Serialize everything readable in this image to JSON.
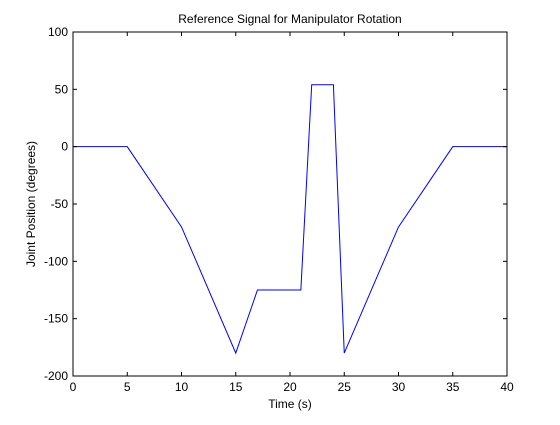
{
  "chart_data": {
    "type": "line",
    "title": "Reference Signal for Manipulator Rotation",
    "xlabel": "Time (s)",
    "ylabel": "Joint Position (degrees)",
    "xlim": [
      0,
      40
    ],
    "ylim": [
      -200,
      100
    ],
    "xticks": [
      0,
      5,
      10,
      15,
      20,
      25,
      30,
      35,
      40
    ],
    "yticks": [
      -200,
      -150,
      -100,
      -50,
      0,
      50,
      100
    ],
    "grid": false,
    "legend": "none",
    "series": [
      {
        "color": "#0000ff",
        "x": [
          0,
          5,
          10,
          15,
          17,
          21,
          22,
          24,
          25,
          30,
          35,
          40
        ],
        "y": [
          0,
          0,
          -70,
          -180,
          -125,
          -125,
          54,
          54,
          -180,
          -70,
          0,
          0
        ]
      }
    ]
  }
}
